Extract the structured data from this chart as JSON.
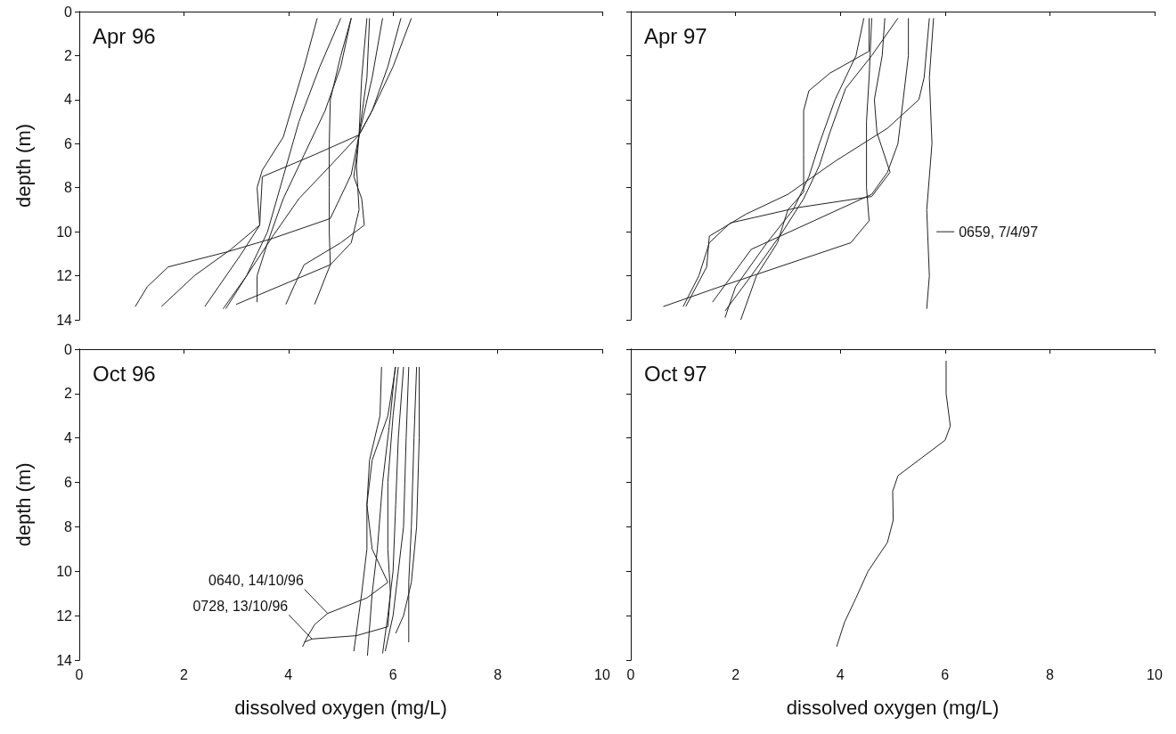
{
  "chart_data": [
    {
      "type": "line",
      "title": "Apr 96",
      "ylabel": "depth (m)",
      "xlim": [
        0,
        10
      ],
      "xticks": [
        0,
        2,
        4,
        6,
        8,
        10
      ],
      "ylim": [
        14,
        0
      ],
      "yticks": [
        0,
        2,
        4,
        6,
        8,
        10,
        12,
        14
      ],
      "tick_labels": "y",
      "marker": "none",
      "line_style": "solid",
      "series": [
        {
          "color": "#222222",
          "x": [
            4.55,
            4.3,
            3.9,
            3.5,
            3.4,
            3.45,
            3.1,
            2.4
          ],
          "values": [
            0.3,
            2.5,
            5.7,
            7.2,
            8,
            9.7,
            11,
            13.4
          ]
        },
        {
          "color": "#222222",
          "x": [
            5.0,
            4.6,
            4.2,
            3.9,
            3.6,
            3.2,
            2.8
          ],
          "values": [
            0.3,
            2.5,
            5,
            7.5,
            10,
            12,
            13.5
          ]
        },
        {
          "color": "#222222",
          "x": [
            5.2,
            5.0,
            4.8,
            4.78,
            4.78,
            4.78,
            4.8,
            4.5
          ],
          "values": [
            0.3,
            2,
            4,
            6,
            8,
            10,
            11.5,
            13.3
          ]
        },
        {
          "color": "#222222",
          "x": [
            5.5,
            5.4,
            5.35,
            5.25,
            5.4,
            5.45,
            5.0,
            4.3,
            4.1,
            3.95
          ],
          "values": [
            0.3,
            3,
            5.6,
            7.5,
            8.5,
            9.7,
            10.5,
            11.5,
            12.5,
            13.3
          ]
        },
        {
          "color": "#222222",
          "x": [
            5.8,
            5.6,
            5.35,
            4.5,
            3.5,
            3.45,
            2.9,
            2.2,
            1.57
          ],
          "values": [
            0.3,
            3,
            5.6,
            6.5,
            7.5,
            9.7,
            10.8,
            12,
            13.4
          ]
        },
        {
          "color": "#222222",
          "x": [
            6.15,
            5.9,
            5.6,
            5.35,
            5.2,
            4.8,
            3.7,
            2.85,
            1.7,
            1.3,
            1.07
          ],
          "values": [
            0.3,
            2.5,
            4.5,
            5.6,
            7.4,
            9.4,
            10.3,
            10.9,
            11.6,
            12.5,
            13.4
          ]
        },
        {
          "color": "#222222",
          "x": [
            6.35,
            6.0,
            5.6,
            5.35,
            4.8,
            4.2,
            3.7,
            3.2,
            2.75
          ],
          "values": [
            0.3,
            2.5,
            4.5,
            5.6,
            7,
            8.5,
            10.2,
            12,
            13.5
          ]
        },
        {
          "color": "#222222",
          "x": [
            5.55,
            5.5,
            5.35,
            5.3,
            5.35,
            5.2,
            4.8,
            4.0,
            3.0
          ],
          "values": [
            0.3,
            3,
            5.6,
            7,
            9,
            10.5,
            11.5,
            12.3,
            13.3
          ]
        },
        {
          "color": "#222222",
          "x": [
            5.2,
            5.0,
            4.7,
            4.3,
            3.9,
            3.6,
            3.4,
            3.4
          ],
          "values": [
            0.3,
            2.5,
            4.5,
            6.5,
            8.5,
            10.5,
            12,
            13.2
          ]
        }
      ]
    },
    {
      "type": "line",
      "title": "Apr 97",
      "xlim": [
        0,
        10
      ],
      "xticks": [
        0,
        2,
        4,
        6,
        8,
        10
      ],
      "ylim": [
        14,
        0
      ],
      "yticks": [
        0,
        2,
        4,
        6,
        8,
        10,
        12,
        14
      ],
      "tick_labels": false,
      "marker": "none",
      "line_style": "solid",
      "annotations": [
        {
          "text": "0659, 7/4/97",
          "x": 5.7,
          "y": 10
        }
      ],
      "series": [
        {
          "color": "#222222",
          "x": [
            5.78,
            5.7,
            5.75,
            5.65,
            5.7,
            5.65
          ],
          "values": [
            0.3,
            3,
            6,
            9,
            12,
            13.5
          ]
        },
        {
          "color": "#222222",
          "x": [
            4.55,
            4.55,
            3.8,
            3.4,
            3.3,
            3.3,
            3.3,
            3.0,
            2.8,
            2.4,
            2.1
          ],
          "values": [
            0.3,
            1.8,
            2.8,
            3.6,
            4.5,
            6.5,
            8.2,
            9,
            10.5,
            12,
            14
          ]
        },
        {
          "color": "#222222",
          "x": [
            4.6,
            4.55,
            4.5,
            4.5,
            4.55,
            4.2,
            3.2,
            1.7,
            0.62
          ],
          "values": [
            0.3,
            3,
            5,
            8,
            9.5,
            10.5,
            11.3,
            12.5,
            13.4
          ]
        },
        {
          "color": "#222222",
          "x": [
            4.85,
            4.8,
            4.65,
            4.7,
            4.95,
            4.6,
            3.2,
            1.9,
            1.5,
            1.3,
            1.0
          ],
          "values": [
            0.3,
            2,
            4,
            5.5,
            7.3,
            8.4,
            8.9,
            9.6,
            10.5,
            12,
            13.4
          ]
        },
        {
          "color": "#222222",
          "x": [
            5.7,
            5.6,
            5.5,
            4.9,
            3.9,
            3.0,
            2.2,
            1.5,
            1.45,
            1.05
          ],
          "values": [
            0.3,
            3,
            4,
            5.3,
            6.8,
            8.3,
            9.2,
            10.2,
            11.6,
            13.4
          ]
        },
        {
          "color": "#222222",
          "x": [
            5.1,
            4.6,
            4.1,
            3.8,
            3.6,
            3.3,
            2.9,
            2.3,
            1.8
          ],
          "values": [
            0.3,
            2,
            3.5,
            5.5,
            7,
            8.5,
            10,
            12,
            13.6
          ]
        },
        {
          "color": "#222222",
          "x": [
            5.3,
            5.3,
            5.2,
            5.1,
            4.9,
            4.6,
            3.5,
            2.3,
            1.56
          ],
          "values": [
            0.3,
            2,
            4,
            6,
            7.3,
            8.3,
            9.5,
            10.8,
            13.2
          ]
        },
        {
          "color": "#222222",
          "x": [
            4.45,
            4.3,
            3.9,
            3.6,
            3.4,
            3.1,
            2.6,
            2.0,
            1.8
          ],
          "values": [
            0.3,
            2,
            4,
            6,
            7.5,
            9,
            10.5,
            12.5,
            13.9
          ]
        }
      ]
    },
    {
      "type": "line",
      "title": "Oct 96",
      "xlabel": "dissolved oxygen (mg/L)",
      "ylabel": "depth (m)",
      "xlim": [
        0,
        10
      ],
      "xticks": [
        0,
        2,
        4,
        6,
        8,
        10
      ],
      "ylim": [
        14,
        0
      ],
      "yticks": [
        0,
        2,
        4,
        6,
        8,
        10,
        12,
        14
      ],
      "marker": "none",
      "line_style": "solid",
      "annotations": [
        {
          "text": "0640, 14/10/96",
          "x": 4.75,
          "y": 11.9
        },
        {
          "text": "0728, 13/10/96",
          "x": 4.45,
          "y": 13.05
        }
      ],
      "series": [
        {
          "color": "#222222",
          "x": [
            6.05,
            5.9,
            5.6,
            5.5,
            5.6,
            5.9,
            5.5,
            4.75,
            4.5,
            4.35,
            4.27
          ],
          "values": [
            0.8,
            3,
            5,
            7,
            9,
            10.5,
            11.2,
            11.9,
            12.4,
            13,
            13.4
          ]
        },
        {
          "color": "#222222",
          "x": [
            6.1,
            6.0,
            5.9,
            5.9,
            5.95,
            5.9,
            5.3,
            4.45,
            4.3
          ],
          "values": [
            0.8,
            3,
            6,
            9,
            11,
            12.5,
            12.9,
            13.05,
            13.2
          ]
        },
        {
          "color": "#222222",
          "x": [
            5.78,
            5.75,
            5.55,
            5.5,
            5.5,
            5.4,
            5.25
          ],
          "values": [
            0.8,
            3,
            5,
            7,
            9,
            11,
            13.6
          ]
        },
        {
          "color": "#222222",
          "x": [
            6.04,
            5.95,
            5.8,
            5.7,
            5.6,
            5.51
          ],
          "values": [
            0.8,
            3,
            6,
            9,
            11,
            13.8
          ]
        },
        {
          "color": "#222222",
          "x": [
            6.2,
            6.1,
            6.05,
            6.0,
            5.9,
            5.8
          ],
          "values": [
            0.8,
            4,
            7,
            10,
            12,
            13.7
          ]
        },
        {
          "color": "#222222",
          "x": [
            6.3,
            6.25,
            6.2,
            6.1,
            6.0,
            5.85
          ],
          "values": [
            0.8,
            4,
            8,
            10,
            12,
            13.6
          ]
        },
        {
          "color": "#222222",
          "x": [
            6.45,
            6.4,
            6.35,
            6.3,
            6.3
          ],
          "values": [
            0.8,
            4,
            8,
            10.5,
            13.2
          ]
        },
        {
          "color": "#222222",
          "x": [
            6.5,
            6.5,
            6.45,
            6.35,
            6.2,
            6.05
          ],
          "values": [
            0.8,
            4,
            8,
            10.5,
            12,
            12.8
          ]
        }
      ]
    },
    {
      "type": "line",
      "title": "Oct 97",
      "xlabel": "dissolved oxygen (mg/L)",
      "xlim": [
        0,
        10
      ],
      "xticks": [
        0,
        2,
        4,
        6,
        8,
        10
      ],
      "ylim": [
        14,
        0
      ],
      "yticks": [
        0,
        2,
        4,
        6,
        8,
        10,
        12,
        14
      ],
      "tick_labels": "x",
      "marker": "none",
      "line_style": "solid",
      "series": [
        {
          "color": "#222222",
          "x": [
            6.02,
            6.02,
            6.1,
            6.0,
            5.55,
            5.1,
            5.0,
            5.01,
            4.9,
            4.53,
            4.3,
            4.08,
            3.93
          ],
          "values": [
            0.52,
            2,
            3.46,
            4.1,
            4.9,
            5.7,
            6.4,
            7.7,
            8.7,
            10,
            11.2,
            12.3,
            13.4
          ]
        }
      ]
    }
  ]
}
